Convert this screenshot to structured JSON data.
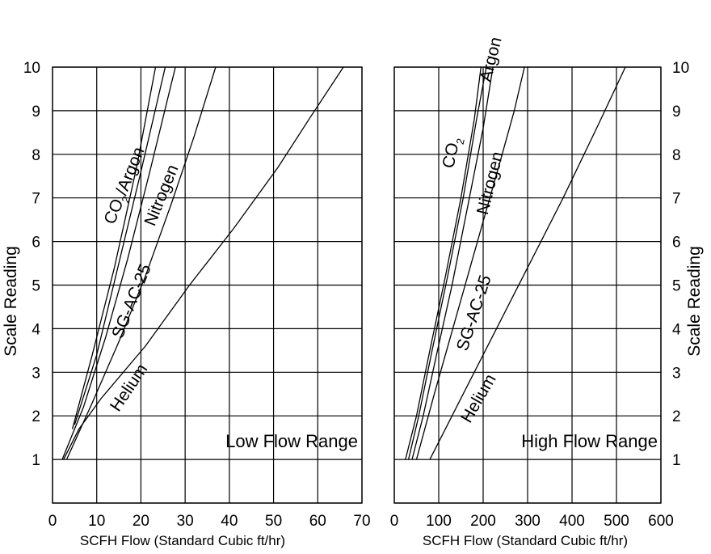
{
  "chart_data": [
    {
      "type": "line",
      "title": "Low Flow Range",
      "xlabel": "SCFH Flow (Standard Cubic ft/hr)",
      "ylabel": "Scale Reading",
      "xlim": [
        0,
        70
      ],
      "ylim": [
        0,
        10
      ],
      "xticks": [
        "0",
        "10",
        "20",
        "30",
        "40",
        "50",
        "60",
        "70"
      ],
      "yticks": [
        "1",
        "2",
        "3",
        "4",
        "5",
        "6",
        "7",
        "8",
        "9",
        "10"
      ],
      "grid": true,
      "series": [
        {
          "name": "CO2/Argon",
          "label_main": "CO",
          "label_sub": "2",
          "label_rest": "/Argon",
          "x": [
            4.5,
            9,
            14,
            19,
            23.3
          ],
          "y": [
            1.7,
            3.4,
            5.4,
            7.7,
            10
          ]
        },
        {
          "name": "CO2/Argon",
          "x": [
            5,
            10,
            15,
            20,
            25.5
          ],
          "y": [
            1.8,
            3.4,
            5.5,
            7.6,
            10
          ]
        },
        {
          "name": "Nitrogen",
          "x": [
            2.2,
            7,
            12,
            17,
            22,
            27.8
          ],
          "y": [
            1.0,
            2.2,
            3.8,
            5.6,
            7.6,
            10
          ]
        },
        {
          "name": "SG-AC-25",
          "x": [
            3.2,
            9,
            15,
            21,
            27,
            32,
            36.9
          ],
          "y": [
            1.0,
            2.3,
            3.7,
            5.2,
            6.9,
            8.4,
            10
          ]
        },
        {
          "name": "Helium",
          "x": [
            2.5,
            6,
            11,
            21,
            31,
            41,
            51,
            58,
            65.8
          ],
          "y": [
            1.0,
            1.7,
            2.4,
            3.6,
            5.0,
            6.3,
            7.7,
            8.8,
            10
          ]
        }
      ]
    },
    {
      "type": "line",
      "title": "High Flow Range",
      "xlabel": "SCFH Flow (Standard Cubic ft/hr)",
      "ylabel": "Scale Reading",
      "xlim": [
        0,
        600
      ],
      "ylim": [
        0,
        10
      ],
      "xticks": [
        "0",
        "100",
        "200",
        "300",
        "400",
        "500",
        "600"
      ],
      "yticks": [
        "1",
        "2",
        "3",
        "4",
        "5",
        "6",
        "7",
        "8",
        "9",
        "10"
      ],
      "grid": true,
      "series": [
        {
          "name": "Argon",
          "x": [
            25,
            50,
            80,
            115,
            150,
            180,
            195
          ],
          "y": [
            1.0,
            2.0,
            3.5,
            5.2,
            7.0,
            8.8,
            10
          ]
        },
        {
          "name": "CO2",
          "label_main": "CO",
          "label_sub": "2",
          "x": [
            32,
            55,
            85,
            120,
            155,
            185,
            207
          ],
          "y": [
            1.0,
            2.0,
            3.5,
            5.2,
            7.0,
            8.8,
            10
          ]
        },
        {
          "name": "Nitrogen",
          "x": [
            40,
            65,
            95,
            130,
            165,
            200,
            222
          ],
          "y": [
            1.0,
            2.0,
            3.4,
            5.0,
            6.8,
            8.6,
            10
          ]
        },
        {
          "name": "SG-AC-25",
          "x": [
            50,
            90,
            140,
            190,
            240,
            270,
            293
          ],
          "y": [
            1.0,
            2.5,
            4.3,
            6.1,
            7.9,
            9.0,
            10
          ]
        },
        {
          "name": "Helium",
          "x": [
            80,
            110,
            150,
            220,
            300,
            380,
            460,
            520
          ],
          "y": [
            1.0,
            1.6,
            2.4,
            3.8,
            5.4,
            7.0,
            8.7,
            10
          ]
        }
      ]
    }
  ]
}
